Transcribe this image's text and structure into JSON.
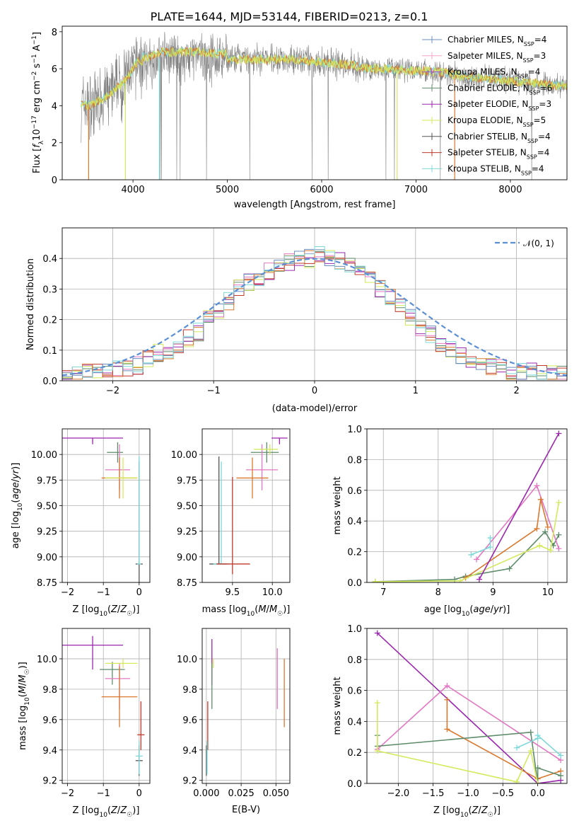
{
  "title": "PLATE=1644, MJD=53144, FIBERID=0213, z=0.1",
  "colors": {
    "Chabrier MILES": "#6c8ebf",
    "Salpeter MILES": "#f4a6c8",
    "Kroupa MILES": "#9b59d0",
    "Chabrier ELODIE": "#5e8c6a",
    "Salpeter ELODIE": "#9b27af",
    "Kroupa ELODIE": "#d4ea5c",
    "Chabrier STELIB": "#555555",
    "Salpeter STELIB": "#c0392b",
    "Kroupa STELIB": "#7fd9d9",
    "pink": "#e377c2",
    "orange": "#d9782e",
    "normal": "#5b8fd6"
  },
  "chart_data": [
    {
      "id": "spectrum",
      "type": "line",
      "title": "PLATE=1644, MJD=53144, FIBERID=0213, z=0.1",
      "xlabel": "wavelength [Angstrom, rest frame]",
      "ylabel": "Flux [f_λ10⁻¹⁷ erg cm⁻² s⁻¹ A⁻¹]",
      "xlim": [
        3250,
        8600
      ],
      "ylim": [
        0,
        8.3
      ],
      "xticks": [
        "4000",
        "5000",
        "6000",
        "7000",
        "8000"
      ],
      "yticks": [
        "0",
        "2",
        "4",
        "6",
        "8"
      ],
      "legend_position": "right",
      "legend": [
        {
          "base": "Chabrier MILES, N",
          "sub": "SSP",
          "tail": "=4"
        },
        {
          "base": "Salpeter MILES, N",
          "sub": "SSP",
          "tail": "=3"
        },
        {
          "base": "Kroupa MILES, N",
          "sub": "SSP",
          "tail": "=4"
        },
        {
          "base": "Chabrier ELODIE, N",
          "sub": "SSP",
          "tail": "=6"
        },
        {
          "base": "Salpeter ELODIE, N",
          "sub": "SSP",
          "tail": "=3"
        },
        {
          "base": "Kroupa ELODIE, N",
          "sub": "SSP",
          "tail": "=5"
        },
        {
          "base": "Chabrier STELIB, N",
          "sub": "SSP",
          "tail": "=4"
        },
        {
          "base": "Salpeter STELIB, N",
          "sub": "SSP",
          "tail": "=4"
        },
        {
          "base": "Kroupa STELIB, N",
          "sub": "SSP",
          "tail": "=4"
        }
      ],
      "model_curve": {
        "x": [
          3450,
          3550,
          3650,
          3750,
          3850,
          3950,
          4050,
          4150,
          4300,
          4500,
          4700,
          4900,
          5100,
          5300,
          5500,
          5700,
          5900,
          6100,
          6300,
          6500,
          6700,
          6900,
          7100,
          7300,
          7500,
          7700,
          7900,
          8100,
          8300,
          8500
        ],
        "y": [
          4.1,
          4.0,
          4.3,
          4.6,
          5.0,
          5.6,
          6.4,
          6.3,
          6.6,
          6.6,
          6.6,
          6.5,
          6.5,
          6.5,
          6.5,
          6.5,
          6.4,
          6.3,
          6.2,
          6.0,
          6.0,
          5.9,
          5.9,
          5.8,
          5.6,
          5.5,
          5.4,
          5.3,
          5.2,
          5.1
        ]
      }
    },
    {
      "id": "residuals",
      "type": "histogram",
      "xlabel": "(data-model)/error",
      "ylabel": "Normed distribution",
      "xlim": [
        -2.5,
        2.5
      ],
      "ylim": [
        0,
        0.5
      ],
      "xticks": [
        "−2",
        "−1",
        "0",
        "1",
        "2"
      ],
      "yticks": [
        "0.0",
        "0.1",
        "0.2",
        "0.3",
        "0.4"
      ],
      "legend": "𝒩(0, 1)",
      "legend_position": "top-right",
      "bin_width": 0.1,
      "bins_centre_heights": [
        0.02,
        0.02,
        0.03,
        0.03,
        0.03,
        0.035,
        0.04,
        0.05,
        0.07,
        0.09,
        0.1,
        0.12,
        0.14,
        0.16,
        0.2,
        0.23,
        0.26,
        0.3,
        0.32,
        0.34,
        0.36,
        0.38,
        0.39,
        0.4,
        0.4,
        0.41,
        0.4,
        0.39,
        0.38,
        0.37,
        0.34,
        0.3,
        0.27,
        0.25,
        0.21,
        0.17,
        0.15,
        0.12,
        0.1,
        0.08,
        0.06,
        0.05,
        0.05,
        0.04,
        0.03,
        0.03,
        0.03,
        0.02,
        0.02,
        0.02
      ]
    },
    {
      "id": "age-vs-Z",
      "type": "scatter",
      "xlabel": "Z [log₁₀(Z/Z☉)]",
      "ylabel": "age  [log₁₀(age/yr)]",
      "xlim": [
        -2.15,
        0.3
      ],
      "ylim": [
        8.75,
        10.25
      ],
      "xticks": [
        "−2",
        "−1",
        "0"
      ],
      "yticks": [
        "8.75",
        "9.00",
        "9.25",
        "9.50",
        "9.75",
        "10.00"
      ],
      "points": [
        {
          "x": -1.3,
          "y": 10.16,
          "xerr": [
            0.85,
            0.85
          ],
          "yerr": [
            0.06,
            0.0
          ],
          "series": "Salpeter ELODIE"
        },
        {
          "x": -0.6,
          "y": 10.02,
          "xerr": [
            0.3,
            0.15
          ],
          "yerr": [
            0.1,
            0.1
          ],
          "series": "Chabrier ELODIE"
        },
        {
          "x": -0.55,
          "y": 9.85,
          "xerr": [
            0.4,
            0.3
          ],
          "yerr": [
            0.2,
            0.25
          ],
          "series": "pink"
        },
        {
          "x": -0.55,
          "y": 9.77,
          "xerr": [
            0.5,
            0.5
          ],
          "yerr": [
            0.2,
            0.2
          ],
          "series": "orange"
        },
        {
          "x": -0.45,
          "y": 9.77,
          "xerr": [
            0.5,
            0.4
          ],
          "yerr": [
            0.2,
            0.2
          ],
          "series": "Kroupa ELODIE"
        },
        {
          "x": 0.0,
          "y": 8.93,
          "xerr": [
            0.1,
            0.1
          ],
          "yerr": [
            0.3,
            1.0
          ],
          "series": "Chabrier STELIB"
        },
        {
          "x": 0.0,
          "y": 8.93,
          "xerr": [
            0.05,
            0.05
          ],
          "yerr": [
            0.0,
            1.05
          ],
          "series": "Kroupa STELIB"
        }
      ]
    },
    {
      "id": "age-vs-mass",
      "type": "scatter",
      "xlabel": "mass [log₁₀(M/M☉)]",
      "ylabel": "",
      "xlim": [
        9.12,
        10.22
      ],
      "ylim": [
        8.75,
        10.25
      ],
      "xticks": [
        "9.5",
        "10.0"
      ],
      "yticks": [
        "8.75",
        "9.00",
        "9.25",
        "9.50",
        "9.75",
        "10.00"
      ],
      "points": [
        {
          "x": 9.33,
          "y": 8.93,
          "xerr": [
            0.12,
            0.1
          ],
          "yerr": [
            0.0,
            1.05
          ],
          "series": "Chabrier STELIB"
        },
        {
          "x": 9.36,
          "y": 8.93,
          "xerr": [
            0.1,
            0.1
          ],
          "yerr": [
            0.0,
            1.0
          ],
          "series": "Kroupa STELIB"
        },
        {
          "x": 9.5,
          "y": 8.93,
          "xerr": [
            0.2,
            0.22
          ],
          "yerr": [
            0.1,
            0.85
          ],
          "series": "Salpeter STELIB"
        },
        {
          "x": 9.93,
          "y": 10.02,
          "xerr": [
            0.2,
            0.15
          ],
          "yerr": [
            0.1,
            0.1
          ],
          "series": "Chabrier ELODIE"
        },
        {
          "x": 9.87,
          "y": 9.85,
          "xerr": [
            0.2,
            0.2
          ],
          "yerr": [
            0.2,
            0.25
          ],
          "series": "pink"
        },
        {
          "x": 9.75,
          "y": 9.77,
          "xerr": [
            0.2,
            0.2
          ],
          "yerr": [
            0.2,
            0.2
          ],
          "series": "orange"
        },
        {
          "x": 9.97,
          "y": 10.05,
          "xerr": [
            0.2,
            0.1
          ],
          "yerr": [
            0.05,
            0.05
          ],
          "series": "Kroupa ELODIE"
        },
        {
          "x": 10.09,
          "y": 10.16,
          "xerr": [
            0.1,
            0.1
          ],
          "yerr": [
            0.06,
            0.0
          ],
          "series": "Salpeter ELODIE"
        }
      ]
    },
    {
      "id": "weight-vs-age",
      "type": "line",
      "xlabel": "age  [log₁₀(age/yr)]",
      "ylabel": "mass weight",
      "xlim": [
        6.7,
        10.35
      ],
      "ylim": [
        0,
        1.0
      ],
      "xticks": [
        "7",
        "8",
        "9",
        "10"
      ],
      "yticks": [
        "0.0",
        "0.2",
        "0.4",
        "0.6",
        "0.8",
        "1.0"
      ],
      "series": [
        {
          "name": "Chabrier ELODIE",
          "x": [
            6.85,
            8.3,
            8.5,
            9.3,
            9.95,
            10.1,
            10.2
          ],
          "y": [
            0.005,
            0.02,
            0.04,
            0.09,
            0.33,
            0.24,
            0.31
          ],
          "color": "#5e8c6a"
        },
        {
          "name": "pink",
          "x": [
            8.7,
            9.8,
            10.2
          ],
          "y": [
            0.15,
            0.63,
            0.22
          ],
          "color": "#e377c2"
        },
        {
          "name": "orange",
          "x": [
            8.5,
            9.8,
            9.87,
            10.0
          ],
          "y": [
            0.03,
            0.35,
            0.54,
            0.36
          ],
          "color": "#d9782e"
        },
        {
          "name": "Kroupa ELODIE",
          "x": [
            6.85,
            8.4,
            9.85,
            10.05,
            10.2
          ],
          "y": [
            0.005,
            0.01,
            0.24,
            0.21,
            0.52
          ],
          "color": "#d4ea5c"
        },
        {
          "name": "Salpeter ELODIE",
          "x": [
            8.75,
            10.2
          ],
          "y": [
            0.02,
            0.97
          ],
          "color": "#9b27af"
        },
        {
          "name": "Kroupa STELIB",
          "x": [
            8.6,
            8.95,
            8.95
          ],
          "y": [
            0.18,
            0.23,
            0.29
          ],
          "color": "#7fd9d9"
        }
      ]
    },
    {
      "id": "mass-vs-Z",
      "type": "scatter",
      "xlabel": "Z [log₁₀(Z/Z☉)]",
      "ylabel": "mass [log₁₀(M/M☉)]",
      "xlim": [
        -2.15,
        0.3
      ],
      "ylim": [
        9.18,
        10.2
      ],
      "xticks": [
        "−2",
        "−1",
        "0"
      ],
      "yticks": [
        "9.2",
        "9.4",
        "9.6",
        "9.8",
        "10.0"
      ],
      "points": [
        {
          "x": -1.3,
          "y": 10.09,
          "xerr": [
            0.85,
            0.85
          ],
          "yerr": [
            0.16,
            0.06
          ],
          "series": "Salpeter ELODIE"
        },
        {
          "x": -0.75,
          "y": 9.93,
          "xerr": [
            0.35,
            0.35
          ],
          "yerr": [
            0.1,
            0.05
          ],
          "series": "Chabrier ELODIE"
        },
        {
          "x": -0.55,
          "y": 9.87,
          "xerr": [
            0.4,
            0.3
          ],
          "yerr": [
            0.2,
            0.1
          ],
          "series": "pink"
        },
        {
          "x": -0.55,
          "y": 9.75,
          "xerr": [
            0.5,
            0.5
          ],
          "yerr": [
            0.2,
            0.2
          ],
          "series": "orange"
        },
        {
          "x": -0.45,
          "y": 9.97,
          "xerr": [
            0.5,
            0.4
          ],
          "yerr": [
            0.03,
            0.03
          ],
          "series": "Kroupa ELODIE"
        },
        {
          "x": 0.0,
          "y": 9.33,
          "xerr": [
            0.1,
            0.1
          ],
          "yerr": [
            0.1,
            0.1
          ],
          "series": "Chabrier STELIB"
        },
        {
          "x": 0.05,
          "y": 9.5,
          "xerr": [
            0.1,
            0.1
          ],
          "yerr": [
            0.1,
            0.22
          ],
          "series": "Salpeter STELIB"
        },
        {
          "x": 0.0,
          "y": 9.36,
          "xerr": [
            0.1,
            0.1
          ],
          "yerr": [
            0.12,
            0.1
          ],
          "series": "Kroupa STELIB"
        }
      ]
    },
    {
      "id": "mass-vs-ebv",
      "type": "scatter",
      "xlabel": "E(B-V)",
      "ylabel": "",
      "xlim": [
        -0.003,
        0.06
      ],
      "ylim": [
        9.18,
        10.2
      ],
      "xticks": [
        "0.000",
        "0.025",
        "0.050"
      ],
      "yticks": [
        "9.2",
        "9.4",
        "9.6",
        "9.8",
        "10.0"
      ],
      "points": [
        {
          "x": 0.0,
          "y": 9.33,
          "yerr": [
            0.1,
            0.1
          ],
          "series": "Chabrier STELIB"
        },
        {
          "x": 0.001,
          "y": 9.5,
          "yerr": [
            0.1,
            0.22
          ],
          "series": "Salpeter STELIB"
        },
        {
          "x": 0.0005,
          "y": 9.36,
          "yerr": [
            0.12,
            0.1
          ],
          "series": "Kroupa STELIB"
        },
        {
          "x": 0.004,
          "y": 9.93,
          "yerr": [
            0.1,
            0.2
          ],
          "series": "Salpeter ELODIE"
        },
        {
          "x": 0.004,
          "y": 9.87,
          "yerr": [
            0.2,
            0.1
          ],
          "series": "Chabrier ELODIE"
        },
        {
          "x": 0.005,
          "y": 9.97,
          "yerr": [
            0.03,
            0.03
          ],
          "series": "Kroupa ELODIE"
        },
        {
          "x": 0.051,
          "y": 9.87,
          "yerr": [
            0.2,
            0.2
          ],
          "series": "pink"
        },
        {
          "x": 0.056,
          "y": 9.75,
          "yerr": [
            0.2,
            0.25
          ],
          "series": "orange"
        }
      ]
    },
    {
      "id": "weight-vs-Z",
      "type": "line",
      "xlabel": "Z [log₁₀(Z/Z☉)]",
      "ylabel": "mass weight",
      "xlim": [
        -2.45,
        0.42
      ],
      "ylim": [
        0,
        1.0
      ],
      "xticks": [
        "−2.0",
        "−1.5",
        "−1.0",
        "−0.5",
        "0.0"
      ],
      "yticks": [
        "0.0",
        "0.2",
        "0.4",
        "0.6",
        "0.8",
        "1.0"
      ],
      "series": [
        {
          "name": "Salpeter ELODIE",
          "x": [
            -2.3,
            0.0,
            0.33
          ],
          "y": [
            0.97,
            0.0,
            0.02
          ],
          "color": "#9b27af"
        },
        {
          "name": "pink",
          "x": [
            -2.3,
            -1.3,
            0.33
          ],
          "y": [
            0.22,
            0.63,
            0.15
          ],
          "color": "#e377c2"
        },
        {
          "name": "orange",
          "x": [
            -1.3,
            -1.3,
            0.0,
            0.33
          ],
          "y": [
            0.54,
            0.35,
            0.03,
            0.08
          ],
          "color": "#d9782e"
        },
        {
          "name": "Chabrier ELODIE",
          "x": [
            -2.3,
            -2.3,
            -0.1,
            0.0,
            0.0,
            0.33
          ],
          "y": [
            0.31,
            0.24,
            0.33,
            0.0,
            0.1,
            0.05
          ],
          "color": "#5e8c6a"
        },
        {
          "name": "Kroupa ELODIE",
          "x": [
            -2.3,
            -2.3,
            -0.3,
            -0.1,
            0.0
          ],
          "y": [
            0.52,
            0.21,
            0.01,
            0.21,
            0.0
          ],
          "color": "#d4ea5c"
        },
        {
          "name": "Kroupa STELIB",
          "x": [
            -0.3,
            0.0,
            0.0,
            0.33
          ],
          "y": [
            0.23,
            0.29,
            0.31,
            0.18
          ],
          "color": "#7fd9d9"
        }
      ]
    }
  ]
}
